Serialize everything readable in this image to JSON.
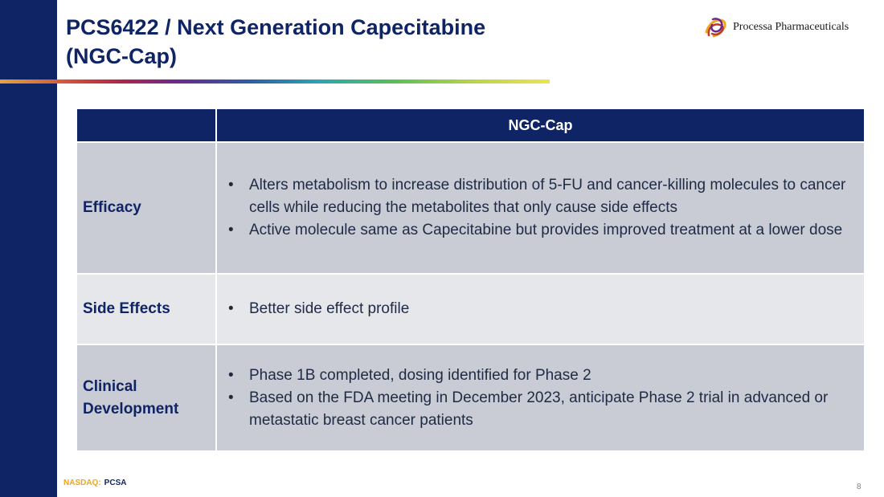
{
  "slide": {
    "title_lines": [
      "PCS6422 / Next Generation Capecitabine",
      "(NGC-Cap)"
    ],
    "page_number": "8"
  },
  "logo": {
    "company_name": "Processa Pharmaceuticals",
    "mark_icon": "swirl-logo-icon",
    "mark_colors": [
      "#f2a51a",
      "#c0392b",
      "#6a2a8c"
    ]
  },
  "table": {
    "column_header": "NGC-Cap",
    "rows": [
      {
        "label_lines": [
          "Efficacy"
        ],
        "bullets": [
          "Alters metabolism to increase distribution of 5-FU and cancer-killing molecules to cancer cells while reducing the metabolites that only cause side effects",
          "Active molecule same as Capecitabine but provides improved treatment at a lower dose"
        ]
      },
      {
        "label_lines": [
          "Side Effects"
        ],
        "bullets": [
          "Better side effect profile"
        ]
      },
      {
        "label_lines": [
          "Clinical",
          "Development"
        ],
        "bullets": [
          "Phase 1B completed, dosing identified for Phase 2",
          "Based on the FDA meeting in December 2023, anticipate Phase 2 trial in advanced or metastatic breast cancer patients"
        ]
      }
    ]
  },
  "footer": {
    "ticker_label": "NASDAQ:",
    "ticker_symbol": "PCSA"
  },
  "colors": {
    "navy": "#0f2464",
    "row_dark": "#c9ccd4",
    "row_light": "#e6e7eb",
    "ticker_orange": "#f2a51a"
  }
}
